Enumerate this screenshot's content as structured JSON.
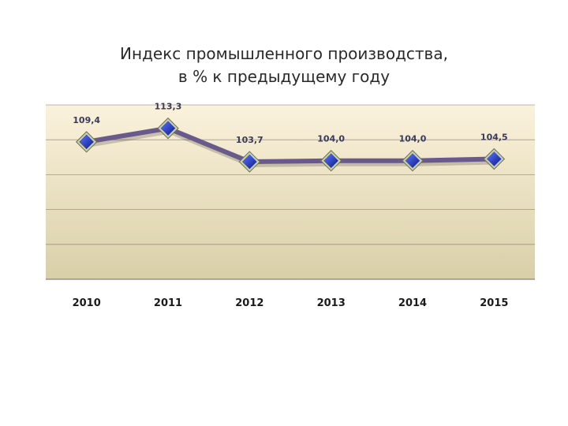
{
  "chart_data": {
    "type": "line",
    "title_line1": "Индекс промышленного производства,",
    "title_line2": "в % к предыдущему году",
    "categories": [
      "2010",
      "2011",
      "2012",
      "2013",
      "2014",
      "2015"
    ],
    "values": [
      109.4,
      113.3,
      103.7,
      104.0,
      104.0,
      104.5
    ],
    "data_labels": [
      "109,4",
      "113,3",
      "103,7",
      "104,0",
      "104,0",
      "104,5"
    ],
    "xlabel": "",
    "ylabel": "",
    "ylim": [
      70,
      120
    ],
    "grid": true,
    "legend": "none",
    "colors": {
      "line": "#6a5a8c",
      "marker_fill": "#2233cc",
      "marker_border": "#c8d0a8",
      "plot_bg_top": "#fbf2dc",
      "plot_bg_bottom": "#d8cfa8",
      "gridline": "#7a7a7a"
    }
  }
}
